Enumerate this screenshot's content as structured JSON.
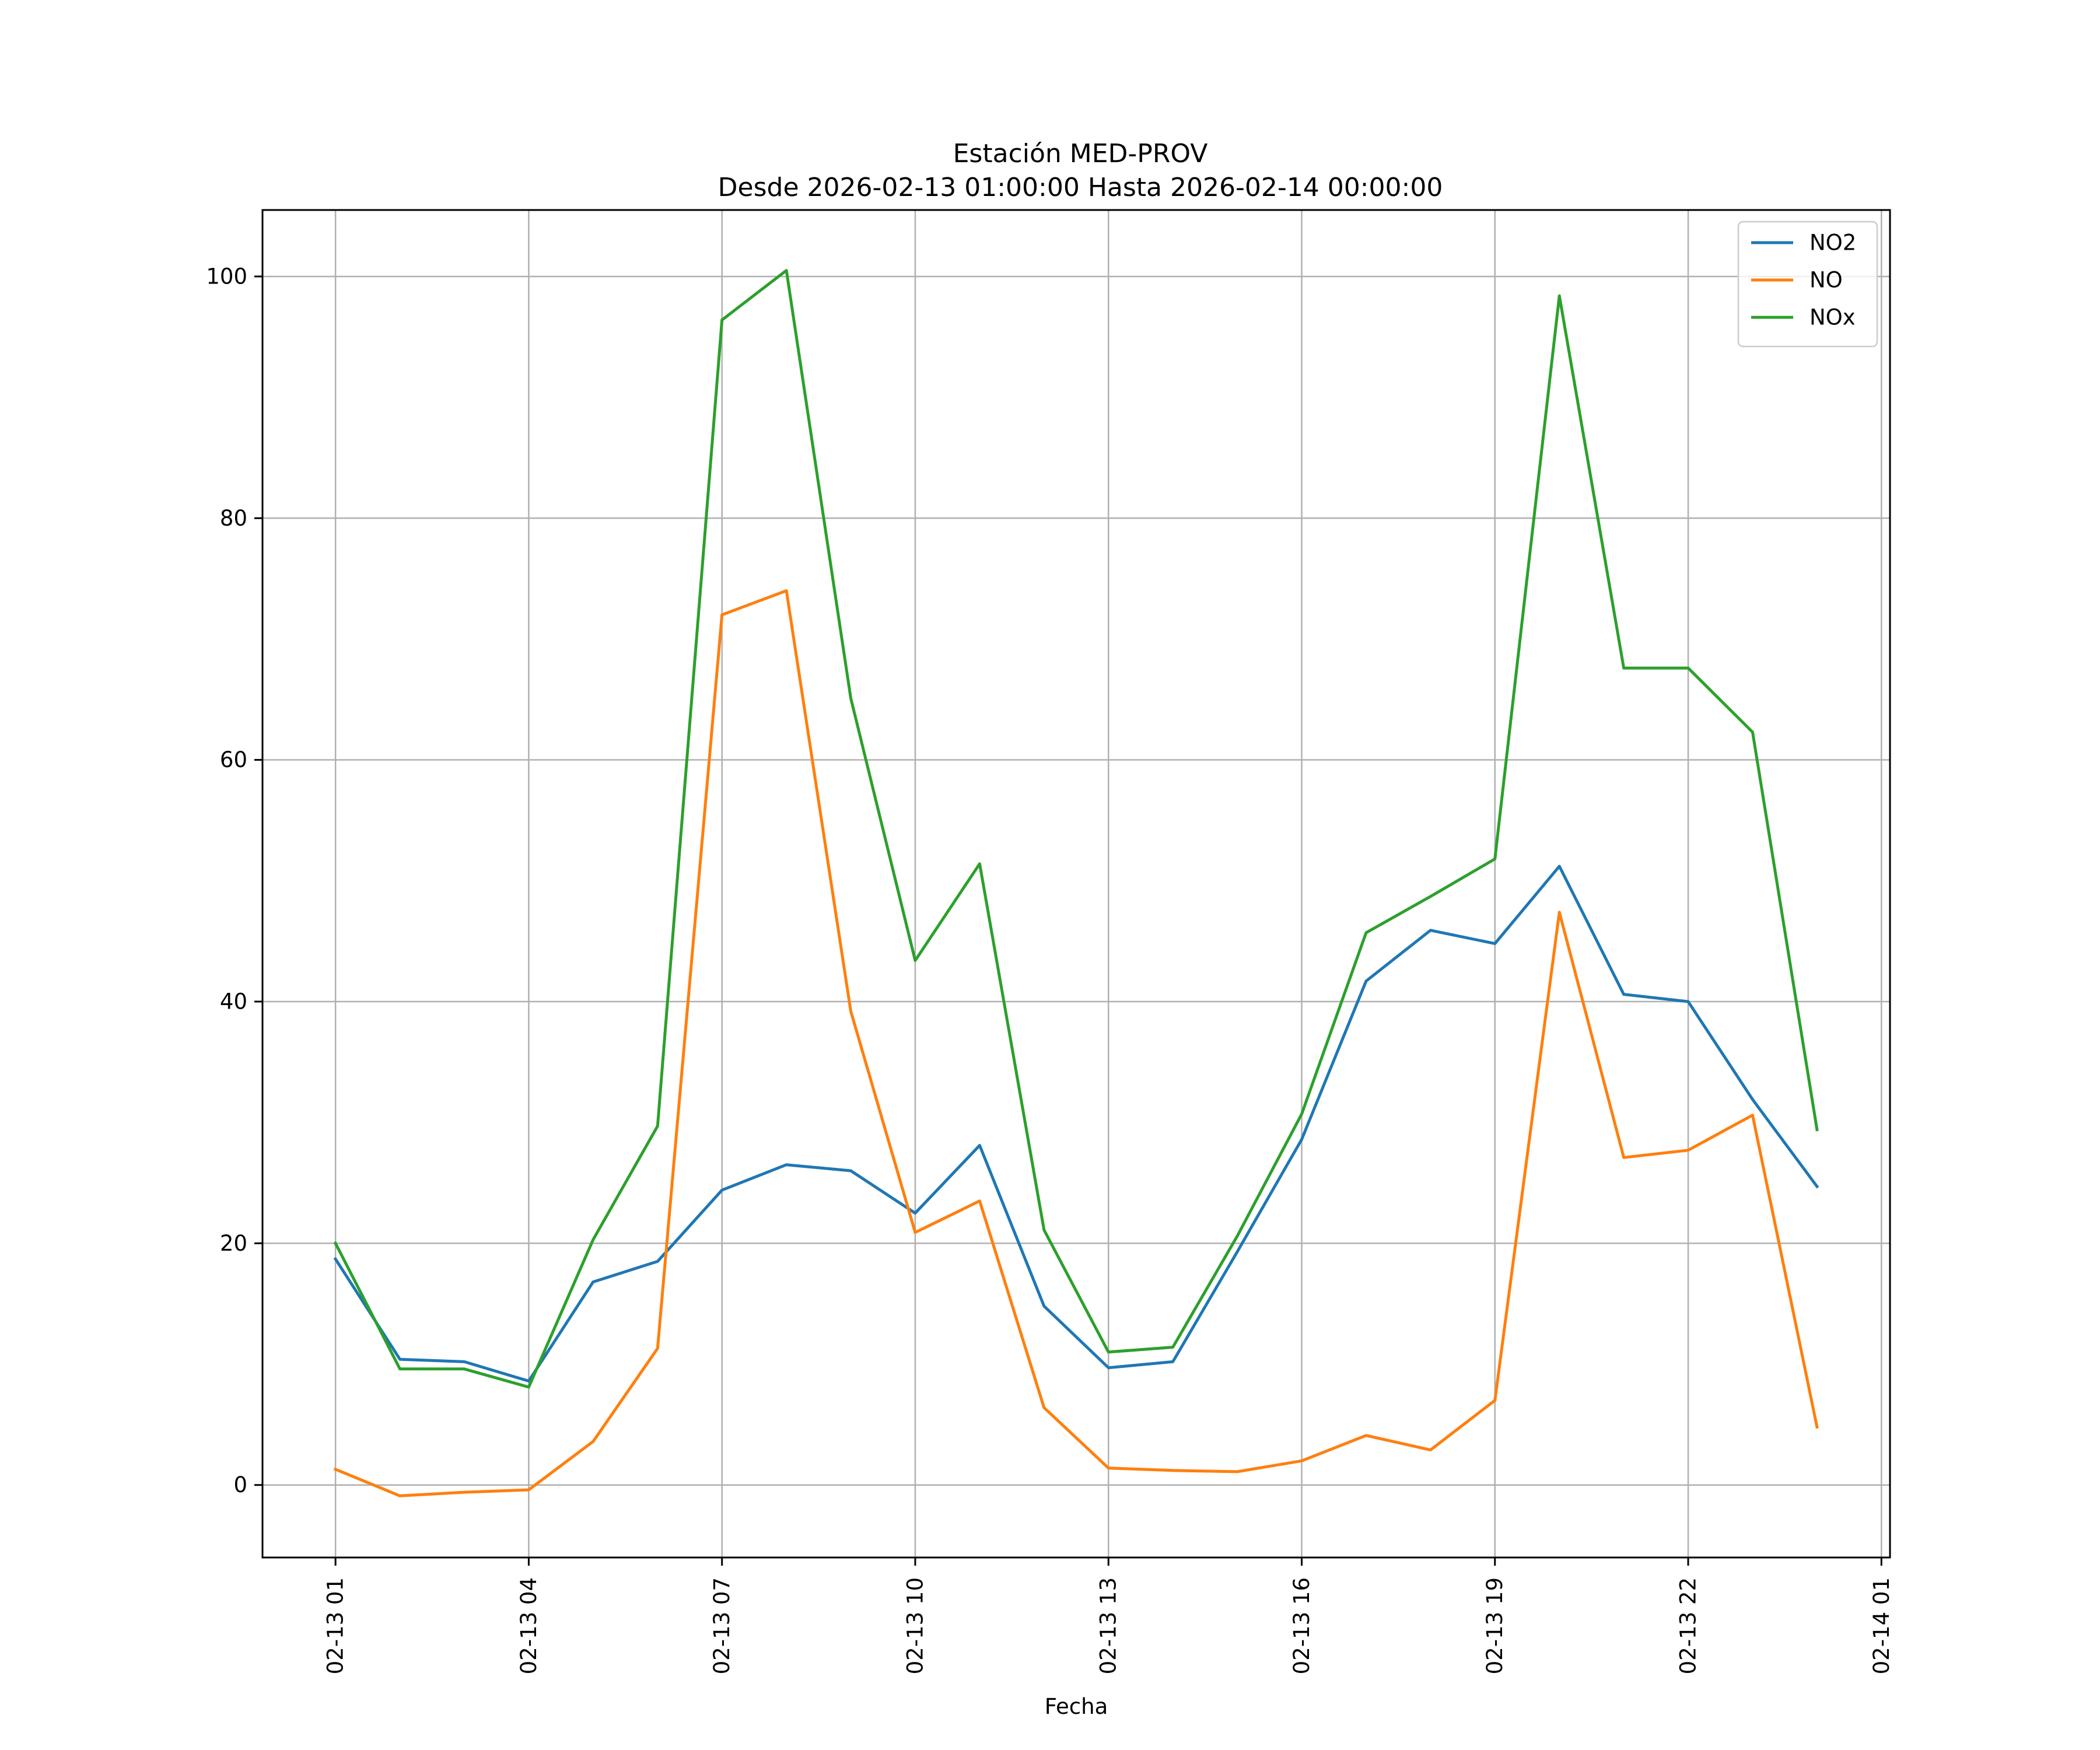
{
  "chart_data": {
    "type": "line",
    "title": "Estación MED-PROV",
    "subtitle": "Desde 2026-02-13 01:00:00 Hasta 2026-02-14 00:00:00",
    "xlabel": "Fecha",
    "ylabel": "",
    "x": [
      "2026-02-13 01:00",
      "2026-02-13 02:00",
      "2026-02-13 03:00",
      "2026-02-13 04:00",
      "2026-02-13 05:00",
      "2026-02-13 06:00",
      "2026-02-13 07:00",
      "2026-02-13 08:00",
      "2026-02-13 09:00",
      "2026-02-13 10:00",
      "2026-02-13 11:00",
      "2026-02-13 12:00",
      "2026-02-13 13:00",
      "2026-02-13 14:00",
      "2026-02-13 15:00",
      "2026-02-13 16:00",
      "2026-02-13 17:00",
      "2026-02-13 18:00",
      "2026-02-13 19:00",
      "2026-02-13 20:00",
      "2026-02-13 21:00",
      "2026-02-13 22:00",
      "2026-02-13 23:00",
      "2026-02-14 00:00"
    ],
    "x_ticks": [
      {
        "x": "2026-02-13 01:00",
        "label": "02-13 01"
      },
      {
        "x": "2026-02-13 04:00",
        "label": "02-13 04"
      },
      {
        "x": "2026-02-13 07:00",
        "label": "02-13 07"
      },
      {
        "x": "2026-02-13 10:00",
        "label": "02-13 10"
      },
      {
        "x": "2026-02-13 13:00",
        "label": "02-13 13"
      },
      {
        "x": "2026-02-13 16:00",
        "label": "02-13 16"
      },
      {
        "x": "2026-02-13 19:00",
        "label": "02-13 19"
      },
      {
        "x": "2026-02-13 22:00",
        "label": "02-13 22"
      },
      {
        "x": "2026-02-14 01:00",
        "label": "02-14 01"
      }
    ],
    "xlim": [
      "2026-02-12 23:52",
      "2026-02-14 01:08"
    ],
    "y_ticks": [
      0,
      20,
      40,
      60,
      80,
      100
    ],
    "ylim": [
      -6,
      105.5
    ],
    "grid": true,
    "legend": "top-right",
    "series": [
      {
        "name": "NO2",
        "color": "#1f77b4",
        "values": [
          18.7,
          10.4,
          10.2,
          8.6,
          16.8,
          18.5,
          24.4,
          26.5,
          26.0,
          22.5,
          28.1,
          14.8,
          9.7,
          10.2,
          19.3,
          28.6,
          41.7,
          45.9,
          44.8,
          51.2,
          40.6,
          40.0,
          31.9,
          24.7
        ]
      },
      {
        "name": "NO",
        "color": "#ff7f0e",
        "values": [
          1.3,
          -0.9,
          -0.6,
          -0.4,
          3.6,
          11.3,
          72.0,
          74.0,
          39.2,
          20.9,
          23.5,
          6.4,
          1.4,
          1.2,
          1.1,
          2.0,
          4.1,
          2.9,
          7.0,
          47.4,
          27.1,
          27.7,
          30.6,
          4.8
        ]
      },
      {
        "name": "NOx",
        "color": "#2ca02c",
        "values": [
          20.0,
          9.6,
          9.6,
          8.1,
          20.3,
          29.7,
          96.4,
          100.5,
          65.1,
          43.4,
          51.4,
          21.1,
          11.0,
          11.4,
          20.6,
          30.7,
          45.7,
          48.7,
          51.8,
          98.4,
          67.6,
          67.6,
          62.3,
          29.4
        ]
      }
    ]
  }
}
